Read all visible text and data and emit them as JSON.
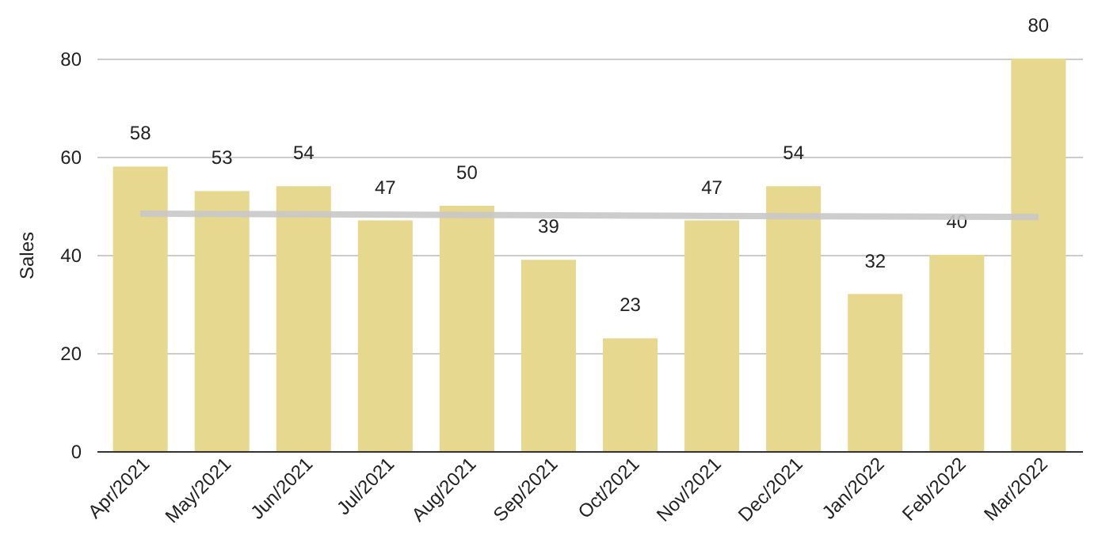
{
  "chart_data": {
    "type": "bar",
    "ylabel": "Sales",
    "categories": [
      "Apr/2021",
      "May/2021",
      "Jun/2021",
      "Jul/2021",
      "Aug/2021",
      "Sep/2021",
      "Oct/2021",
      "Nov/2021",
      "Dec/2021",
      "Jan/2022",
      "Feb/2022",
      "Mar/2022"
    ],
    "series": [
      {
        "color": "#e6d88f",
        "values": [
          58,
          53,
          54,
          47,
          50,
          39,
          23,
          47,
          54,
          32,
          40,
          80
        ],
        "value_labels": [
          "58",
          "53",
          "54",
          "47",
          "50",
          "39",
          "23",
          "47",
          "54",
          "32",
          "40",
          "80"
        ]
      },
      {
        "type": "line",
        "color": "#c8c8c8",
        "x": [
          "Apr/2021",
          "Mar/2022"
        ],
        "values": [
          48.4,
          47.7
        ]
      }
    ],
    "ylim": [
      0,
      80
    ],
    "yticks": [
      0,
      20,
      40,
      60,
      80
    ],
    "grid": "y"
  }
}
